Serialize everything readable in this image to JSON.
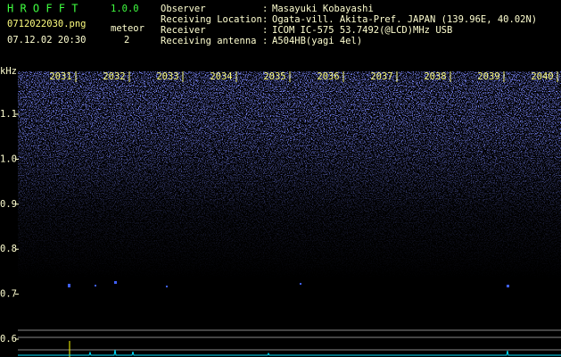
{
  "header": {
    "app": "H R O F F T",
    "version": "1.0.0",
    "filename": "0712022030.png",
    "meteor_label": "meteor",
    "datetime": "07.12.02 20:30",
    "meteor_count": "2"
  },
  "info": {
    "separator": ":",
    "rows": [
      {
        "label": "Observer",
        "value": "Masayuki Kobayashi"
      },
      {
        "label": "Receiving Location",
        "value": "Ogata-vill. Akita-Pref. JAPAN (139.96E, 40.02N)"
      },
      {
        "label": "Receiver",
        "value": "ICOM IC-575 53.7492(@LCD)MHz USB"
      },
      {
        "label": "Receiving antenna",
        "value": "A504HB(yagi 4el)"
      }
    ]
  },
  "axis": {
    "unit": "kHz",
    "time_ticks": [
      "2031",
      "2032",
      "2033",
      "2034",
      "2035",
      "2036",
      "2037",
      "2038",
      "2039",
      "2040"
    ],
    "freq_ticks": [
      "1.1",
      "1.0",
      "0.9",
      "0.8",
      "0.7",
      "0.6"
    ]
  }
}
